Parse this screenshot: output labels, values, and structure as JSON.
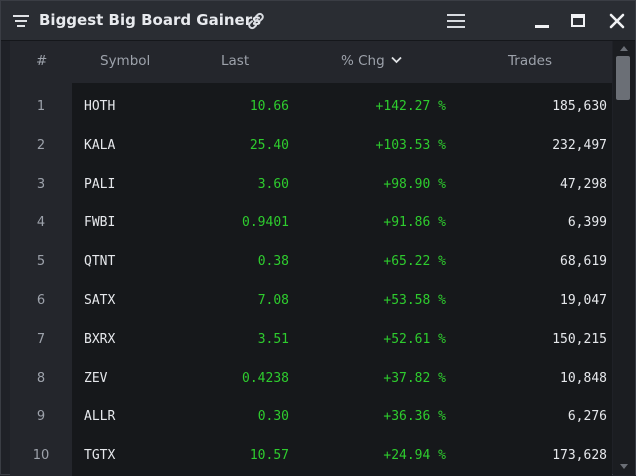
{
  "window": {
    "title": "Biggest Big Board Gainers"
  },
  "columns": {
    "num": "#",
    "symbol": "Symbol",
    "last": "Last",
    "chg": "% Chg",
    "trades": "Trades"
  },
  "rows": [
    {
      "num": "1",
      "symbol": "HOTH",
      "last": "10.66",
      "chg": "+142.27 %",
      "trades": "185,630"
    },
    {
      "num": "2",
      "symbol": "KALA",
      "last": "25.40",
      "chg": "+103.53 %",
      "trades": "232,497"
    },
    {
      "num": "3",
      "symbol": "PALI",
      "last": "3.60",
      "chg": "+98.90 %",
      "trades": "47,298"
    },
    {
      "num": "4",
      "symbol": "FWBI",
      "last": "0.9401",
      "chg": "+91.86 %",
      "trades": "6,399"
    },
    {
      "num": "5",
      "symbol": "QTNT",
      "last": "0.38",
      "chg": "+65.22 %",
      "trades": "68,619"
    },
    {
      "num": "6",
      "symbol": "SATX",
      "last": "7.08",
      "chg": "+53.58 %",
      "trades": "19,047"
    },
    {
      "num": "7",
      "symbol": "BXRX",
      "last": "3.51",
      "chg": "+52.61 %",
      "trades": "150,215"
    },
    {
      "num": "8",
      "symbol": "ZEV",
      "last": "0.4238",
      "chg": "+37.82 %",
      "trades": "10,848"
    },
    {
      "num": "9",
      "symbol": "ALLR",
      "last": "0.30",
      "chg": "+36.36 %",
      "trades": "6,276"
    },
    {
      "num": "10",
      "symbol": "TGTX",
      "last": "10.57",
      "chg": "+24.94 %",
      "trades": "173,628"
    }
  ],
  "icons": {
    "menu": "filter-lines-icon",
    "link": "link-icon",
    "hamburger": "hamburger-icon",
    "minimize": "minimize-icon",
    "maximize": "maximize-icon",
    "close": "close-icon",
    "sort": "chevron-down-icon"
  },
  "colors": {
    "positive": "#2ecc2e",
    "text": "#e6e8ec",
    "muted": "#9da2ab",
    "background": "#16181b",
    "titlebar": "#2a2d33"
  }
}
